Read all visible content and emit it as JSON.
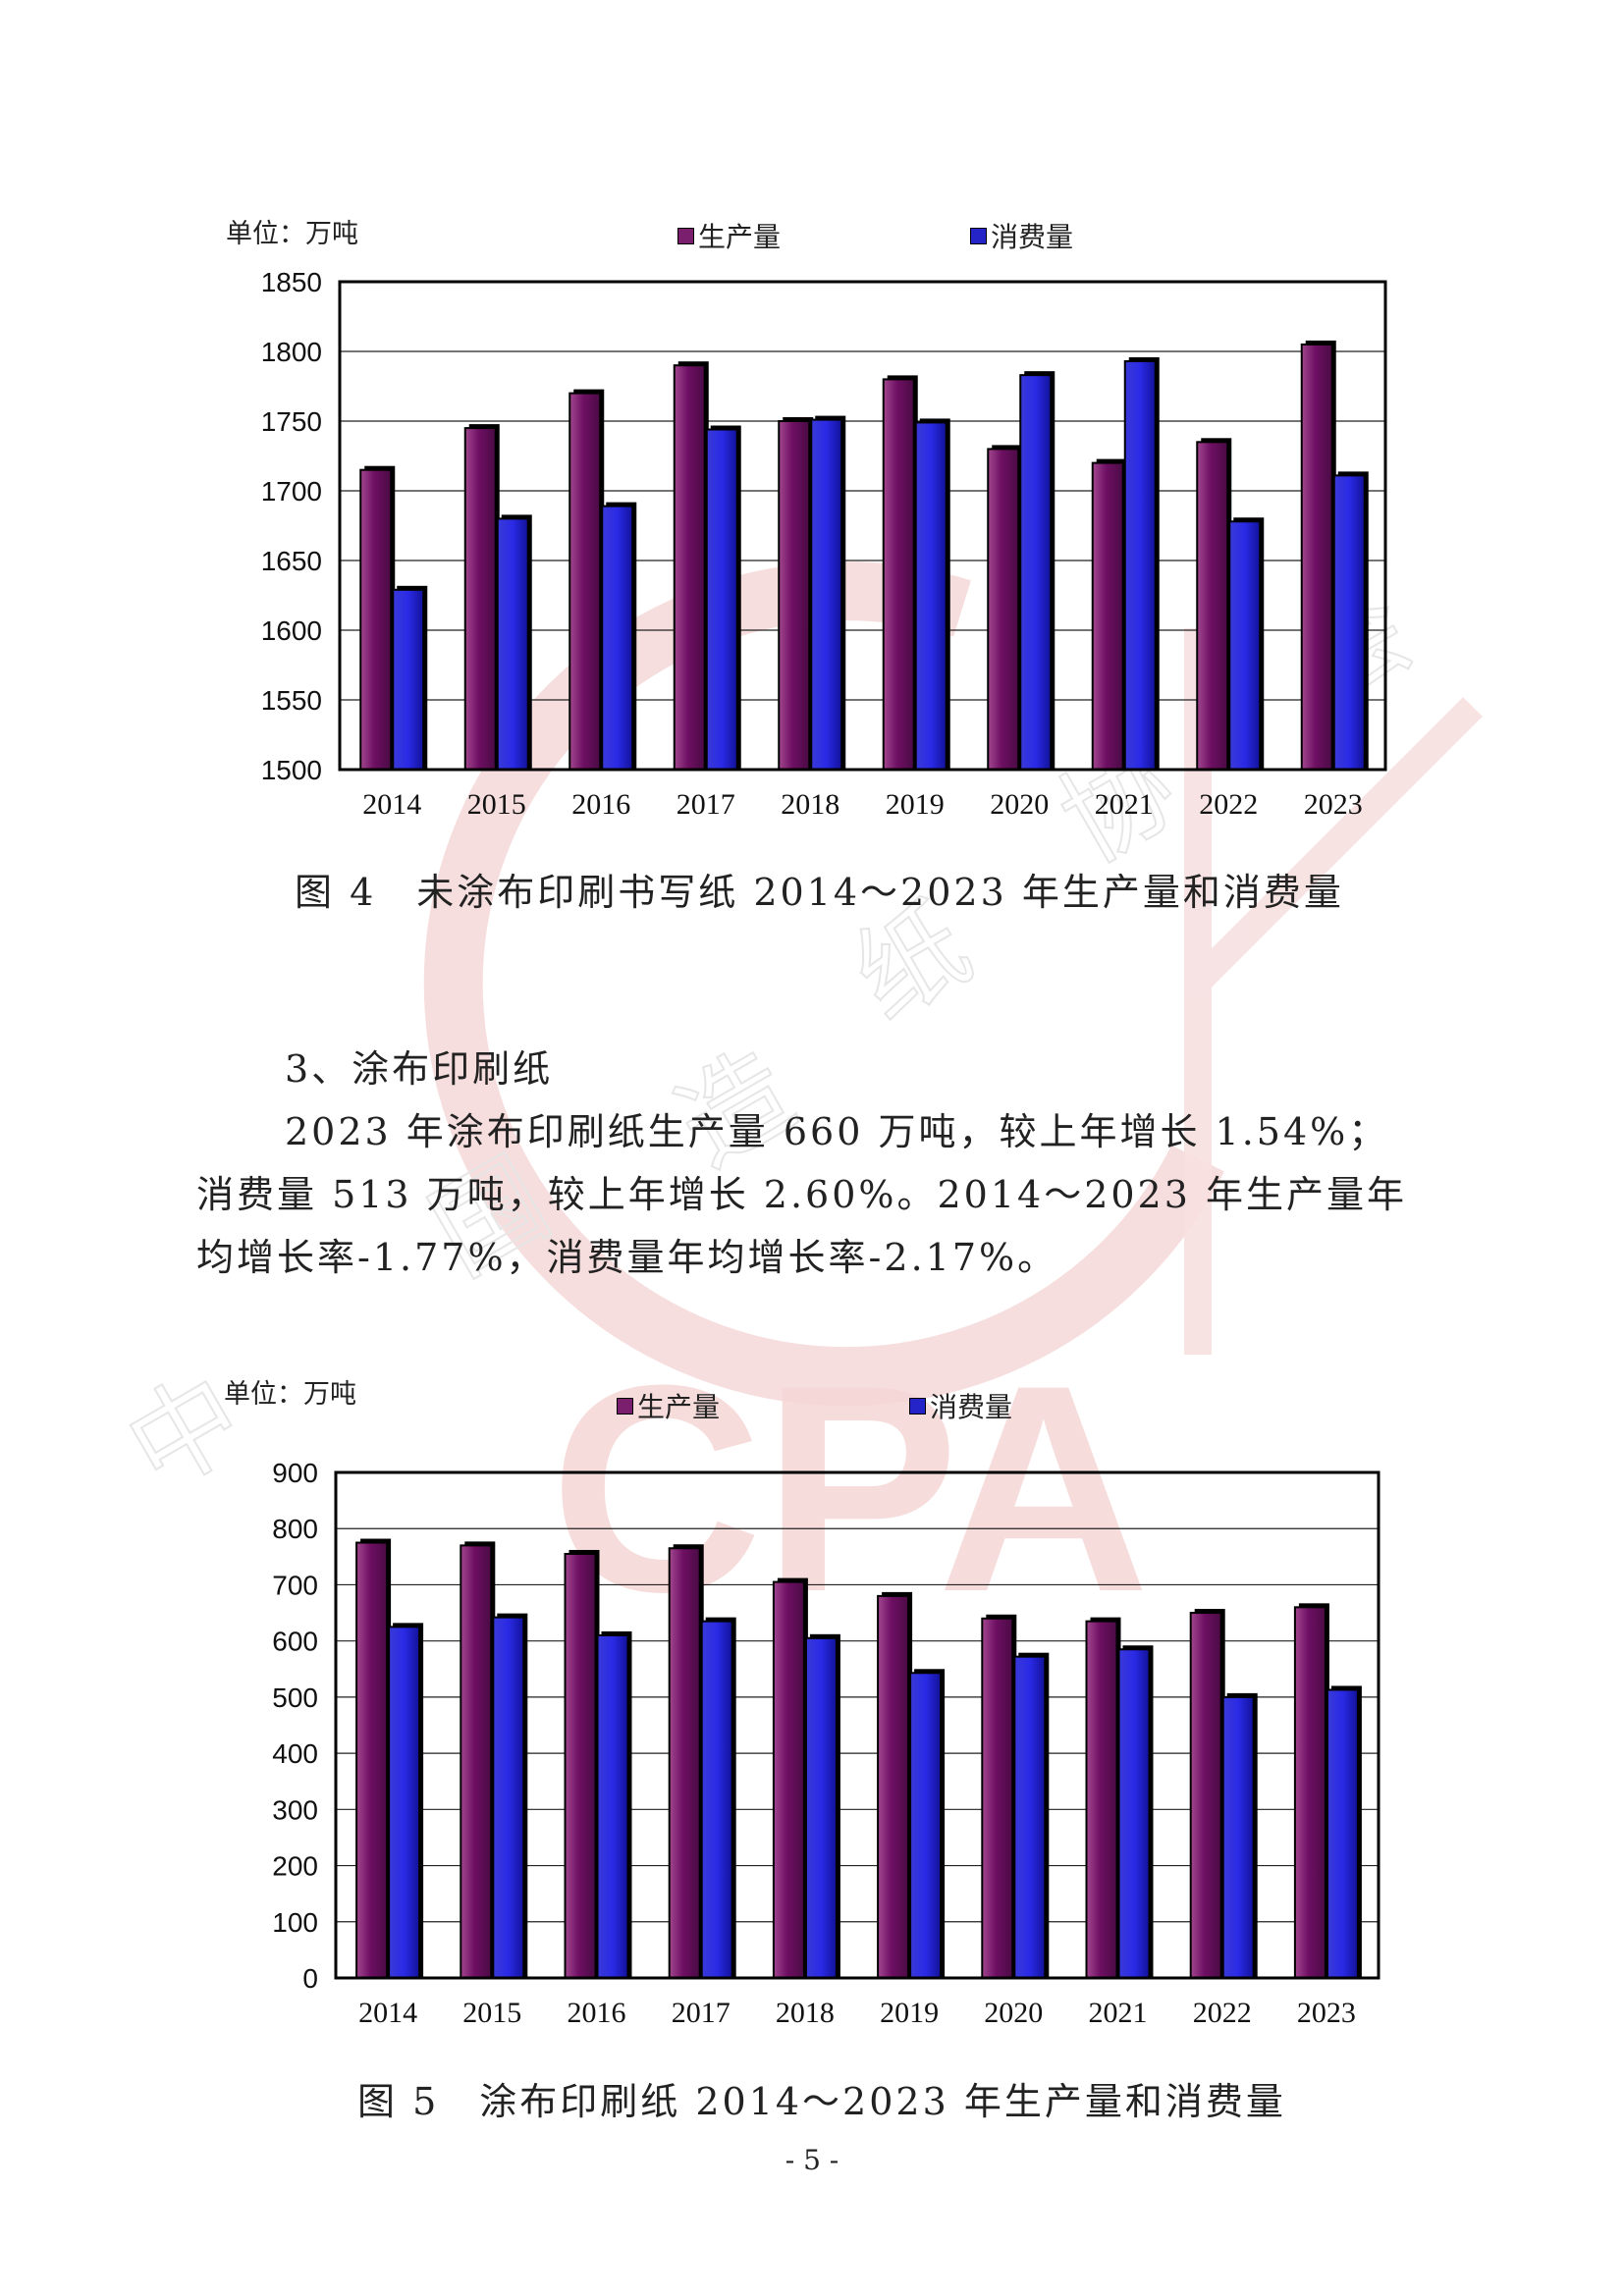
{
  "chart_data": [
    {
      "type": "bar",
      "unit_label": "单位：万吨",
      "categories": [
        "2014",
        "2015",
        "2016",
        "2017",
        "2018",
        "2019",
        "2020",
        "2021",
        "2022",
        "2023"
      ],
      "series": [
        {
          "name": "生产量",
          "values": [
            1715,
            1745,
            1770,
            1790,
            1750,
            1780,
            1730,
            1720,
            1735,
            1805
          ]
        },
        {
          "name": "消费量",
          "values": [
            1629,
            1680,
            1689,
            1744,
            1751,
            1749,
            1783,
            1793,
            1678,
            1711
          ]
        }
      ],
      "ylim": [
        1500,
        1850
      ],
      "yticks": [
        1500,
        1550,
        1600,
        1650,
        1700,
        1750,
        1800,
        1850
      ],
      "grid": true,
      "legend": "top",
      "caption": "图 4　未涂布印刷书写纸 2014～2023 年生产量和消费量"
    },
    {
      "type": "bar",
      "unit_label": "单位：万吨",
      "categories": [
        "2014",
        "2015",
        "2016",
        "2017",
        "2018",
        "2019",
        "2020",
        "2021",
        "2022",
        "2023"
      ],
      "series": [
        {
          "name": "生产量",
          "values": [
            775,
            770,
            755,
            765,
            705,
            680,
            640,
            635,
            650,
            660
          ]
        },
        {
          "name": "消费量",
          "values": [
            625,
            642,
            610,
            635,
            605,
            543,
            572,
            585,
            500,
            513
          ]
        }
      ],
      "ylim": [
        0,
        900
      ],
      "yticks": [
        0,
        100,
        200,
        300,
        400,
        500,
        600,
        700,
        800,
        900
      ],
      "grid": true,
      "legend": "top",
      "caption": "图 5　涂布印刷纸 2014～2023 年生产量和消费量"
    }
  ],
  "colors": {
    "production": "#7a1f6e",
    "consumption": "#2424c8",
    "watermark": "#f3d2d2"
  },
  "section": {
    "title": "3、涂布印刷纸",
    "lines": [
      "2023 年涂布印刷纸生产量 660 万吨，较上年增长 1.54%；",
      "消费量 513 万吨，较上年增长 2.60%。2014～2023 年生产量年",
      "均增长率-1.77%，消费量年均增长率-2.17%。"
    ]
  },
  "watermark": {
    "logo_text": "CPA",
    "chars": [
      "中",
      "国",
      "造",
      "纸",
      "协",
      "会"
    ]
  },
  "page_number": "- 5 -"
}
